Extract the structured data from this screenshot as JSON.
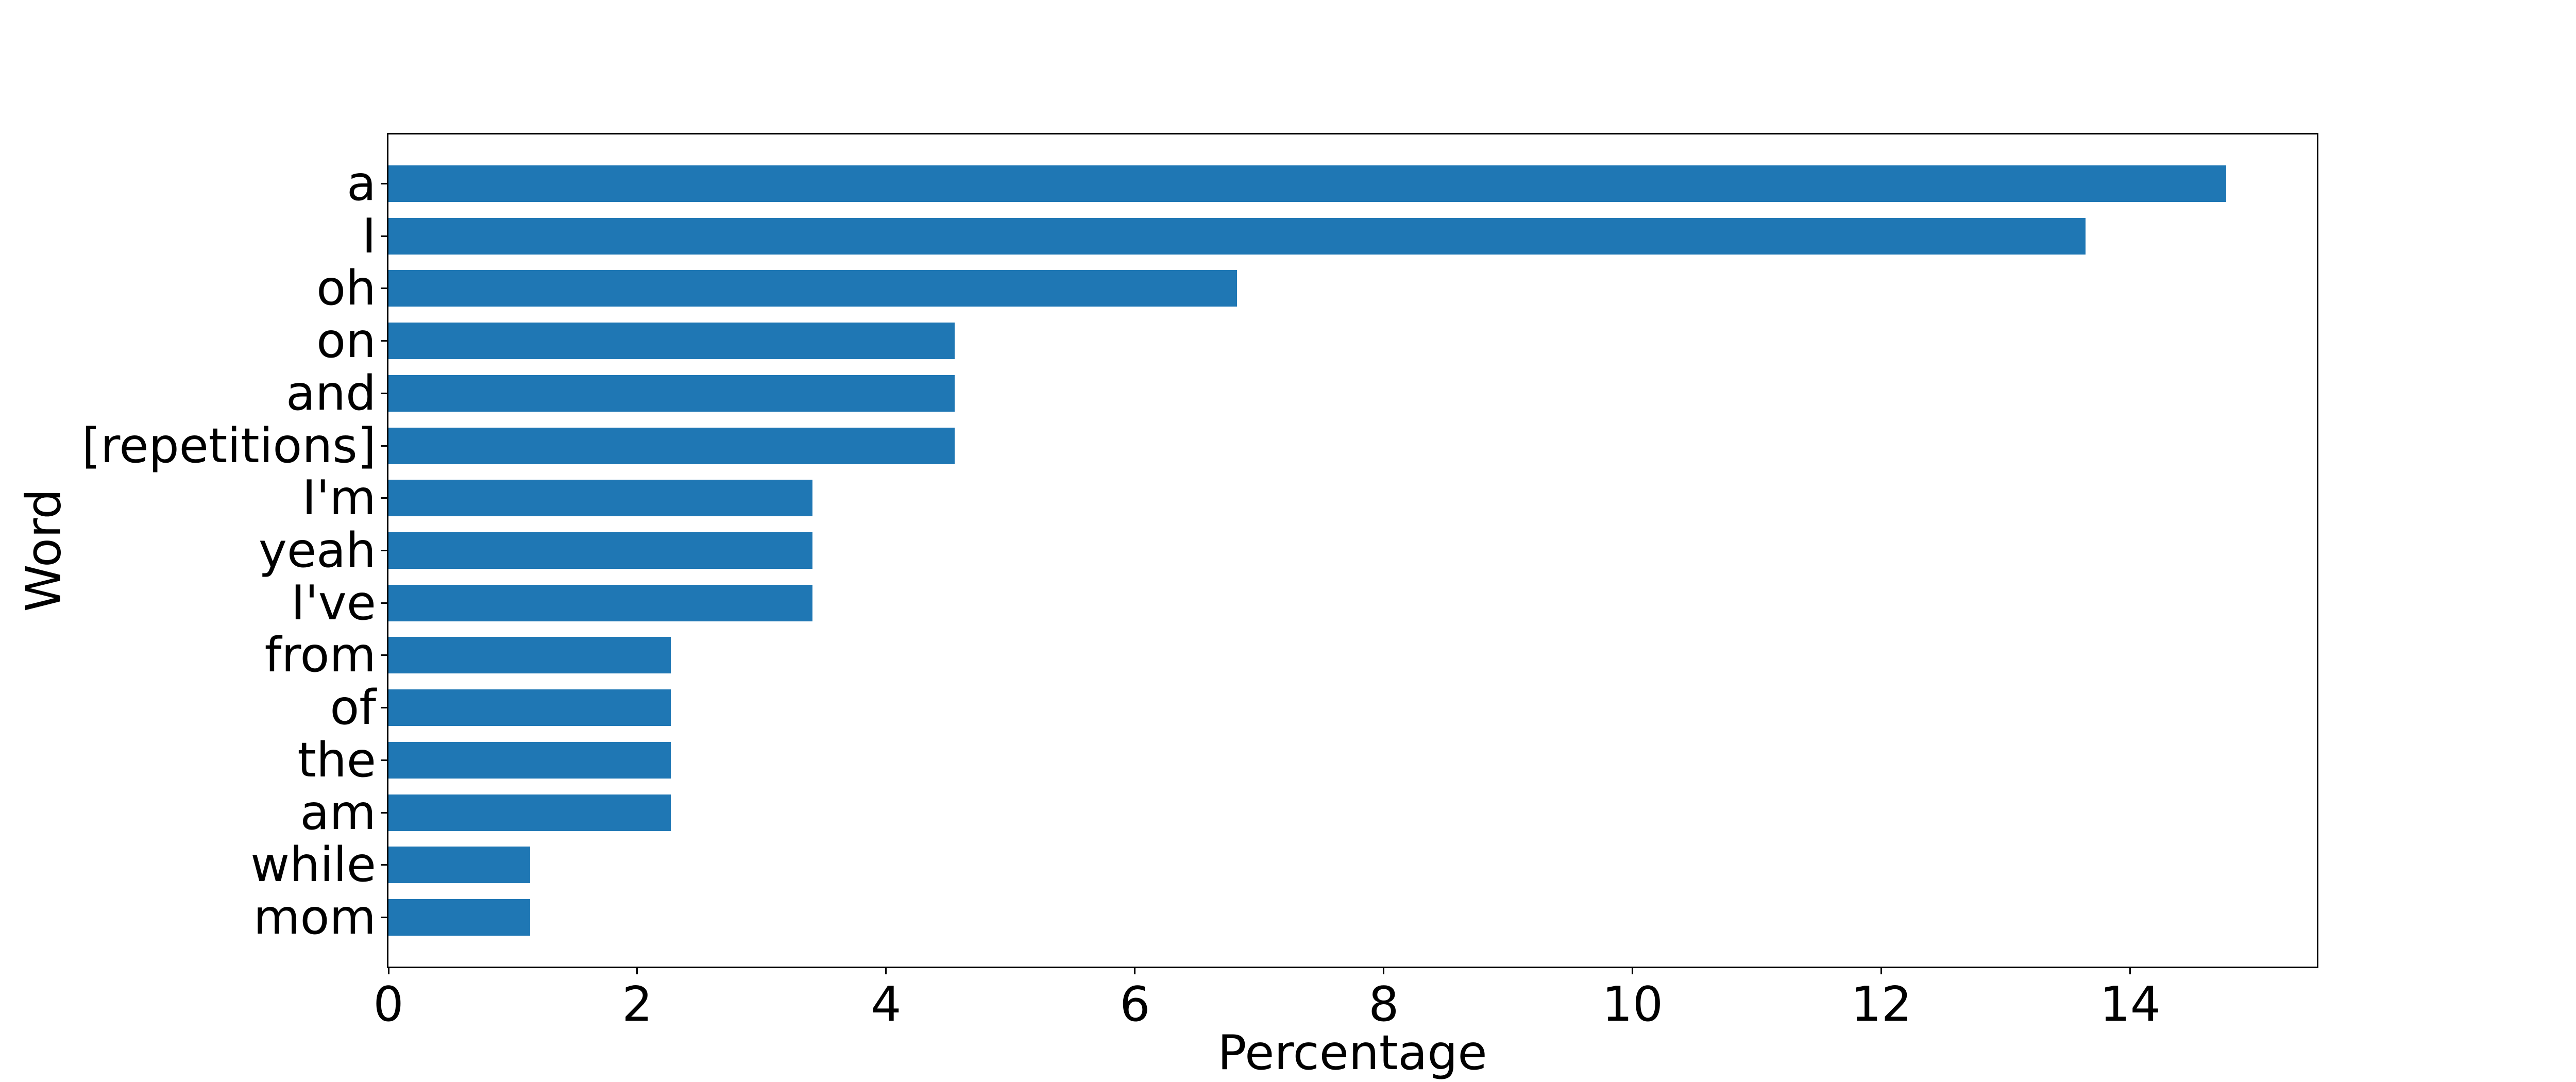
{
  "chart_data": {
    "type": "bar",
    "orientation": "horizontal",
    "title": "",
    "xlabel": "Percentage",
    "ylabel": "Word",
    "categories": [
      "a",
      "I",
      "oh",
      "on",
      "and",
      "[repetitions]",
      "I'm",
      "yeah",
      "I've",
      "from",
      "of",
      "the",
      "am",
      "while",
      "mom"
    ],
    "values": [
      14.77,
      13.64,
      6.82,
      4.55,
      4.55,
      4.55,
      3.41,
      3.41,
      3.41,
      2.27,
      2.27,
      2.27,
      2.27,
      1.14,
      1.14
    ],
    "xlim": [
      0,
      15.5
    ],
    "xticks": [
      0,
      2,
      4,
      6,
      8,
      10,
      12,
      14
    ],
    "bar_color": "#1f77b4",
    "spine_color": "#000000",
    "grid": false,
    "legend": null
  }
}
